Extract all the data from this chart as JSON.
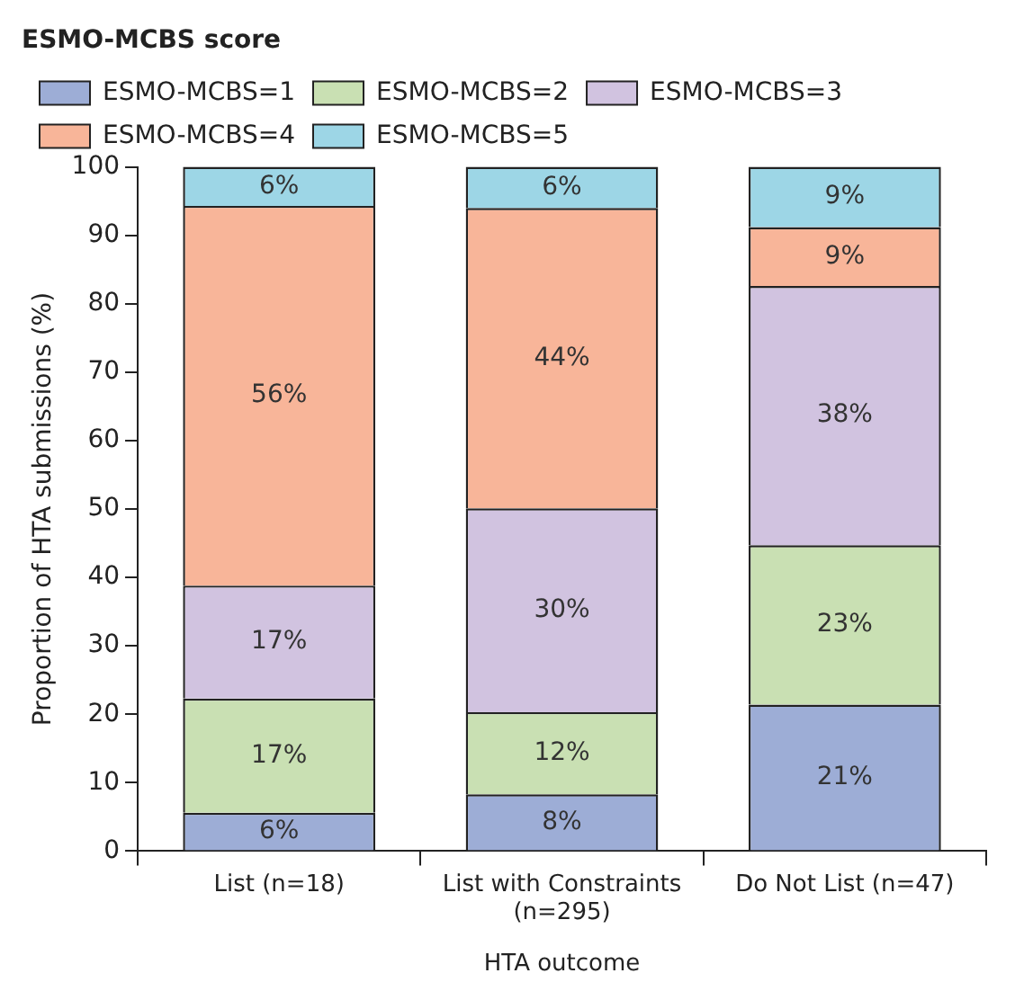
{
  "chart_data": {
    "type": "bar",
    "stacked": true,
    "legend": "top left",
    "legend_title": "ESMO-MCBS score",
    "xlabel": "HTA outcome",
    "ylabel": "Proportion of HTA submissions (%)",
    "categories": [
      "List (n=18)",
      "List with Constraints (n=295)",
      "Do Not List (n=47)"
    ],
    "ylim": [
      0,
      100
    ],
    "yticks": [
      0,
      10,
      20,
      30,
      40,
      50,
      60,
      70,
      80,
      90,
      100
    ],
    "grid": false,
    "series": [
      {
        "name": "ESMO-MCBS=1",
        "color": "#9dadd6",
        "values": [
          5.6,
          8.3,
          21.4
        ],
        "value_labels": [
          "6%",
          "8%",
          "21%"
        ]
      },
      {
        "name": "ESMO-MCBS=2",
        "color": "#c9e0b3",
        "values": [
          16.7,
          12,
          23.3
        ],
        "value_labels": [
          "17%",
          "12%",
          "23%"
        ]
      },
      {
        "name": "ESMO-MCBS=3",
        "color": "#d1c3e0",
        "values": [
          16.5,
          29.8,
          37.9
        ],
        "value_labels": [
          "17%",
          "30%",
          "38%"
        ]
      },
      {
        "name": "ESMO-MCBS=4",
        "color": "#f8b599",
        "values": [
          55.5,
          43.9,
          8.6
        ],
        "value_labels": [
          "56%",
          "44%",
          "9%"
        ]
      },
      {
        "name": "ESMO-MCBS=5",
        "color": "#9dd6e6",
        "values": [
          5.7,
          6,
          8.8
        ],
        "value_labels": [
          "6%",
          "6%",
          "9%"
        ]
      }
    ]
  }
}
